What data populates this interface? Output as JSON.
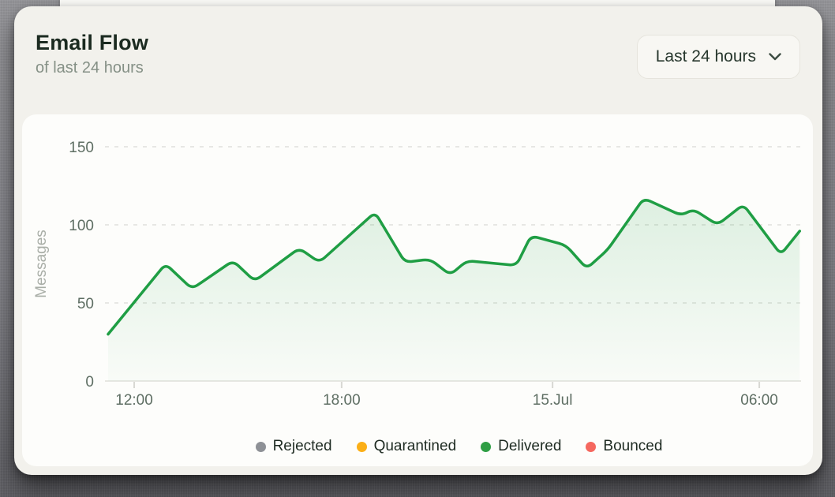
{
  "header": {
    "title": "Email Flow",
    "subtitle": "of last 24 hours"
  },
  "range_selector": {
    "label": "Last 24 hours",
    "icon": "chevron-down"
  },
  "chart_data": {
    "type": "area",
    "title": "Email Flow",
    "subtitle": "of last 24 hours",
    "xlabel": "",
    "ylabel": "Messages",
    "ylim": [
      0,
      150
    ],
    "y_ticks": [
      0,
      50,
      100,
      150
    ],
    "grid": "horizontal-dashed",
    "legend_position": "bottom",
    "x_ticks": [
      {
        "label": "12:00",
        "pct": 4.2
      },
      {
        "label": "18:00",
        "pct": 34.0
      },
      {
        "label": "15.Jul",
        "pct": 64.3
      },
      {
        "label": "06:00",
        "pct": 94.0
      }
    ],
    "series": [
      {
        "name": "Delivered",
        "color": "#1f9e44",
        "points": [
          [
            0.45,
            30
          ],
          [
            8.7,
            75
          ],
          [
            12.5,
            59
          ],
          [
            18.4,
            77
          ],
          [
            21.5,
            64
          ],
          [
            27.9,
            85
          ],
          [
            30.8,
            76
          ],
          [
            38.8,
            108
          ],
          [
            43.1,
            76
          ],
          [
            46.7,
            78
          ],
          [
            49.6,
            68
          ],
          [
            52.0,
            77
          ],
          [
            59.1,
            74
          ],
          [
            61.2,
            93
          ],
          [
            66.2,
            87
          ],
          [
            69.2,
            72
          ],
          [
            72.2,
            84
          ],
          [
            77.4,
            117
          ],
          [
            82.8,
            106
          ],
          [
            84.5,
            110
          ],
          [
            88.0,
            100
          ],
          [
            91.7,
            113
          ],
          [
            97.1,
            81
          ],
          [
            99.8,
            96
          ]
        ]
      }
    ],
    "legend": [
      {
        "label": "Rejected",
        "color": "#8e9196"
      },
      {
        "label": "Quarantined",
        "color": "#fbaf17"
      },
      {
        "label": "Delivered",
        "color": "#2f9e44"
      },
      {
        "label": "Bounced",
        "color": "#f5685f"
      }
    ]
  },
  "colors": {
    "card_bg": "#f2f1ec",
    "panel_bg": "#fdfdfb",
    "accent_green": "#1f9e44",
    "axis_label": "#5e6e63",
    "grid_line": "#e0e0dc"
  }
}
